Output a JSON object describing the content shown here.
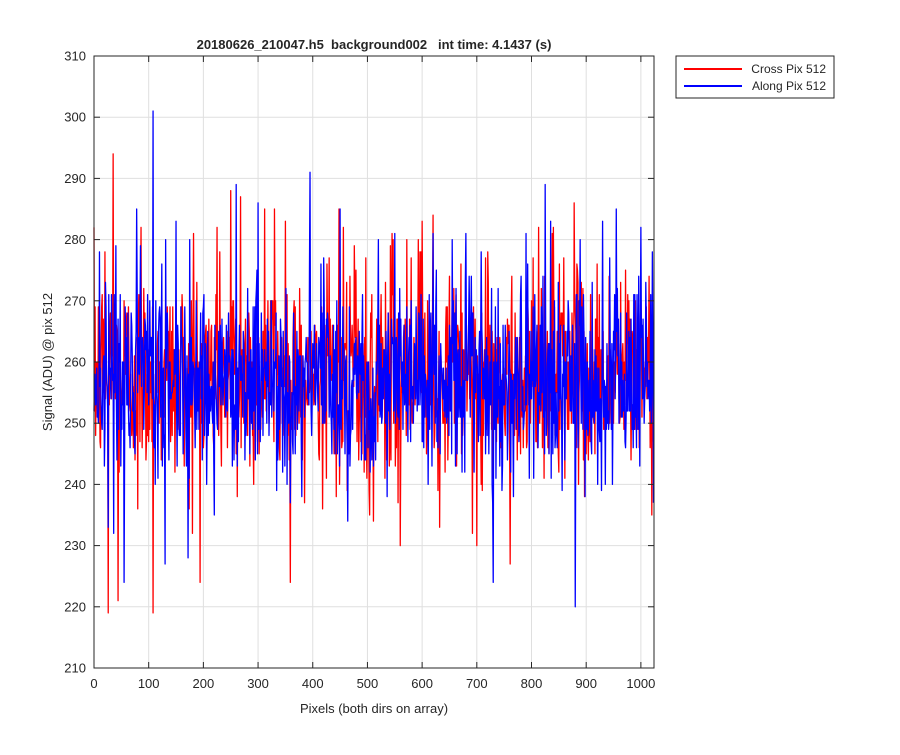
{
  "chart_data": {
    "type": "line",
    "title": "20180626_210047.h5  background002   int time: 4.1437 (s)",
    "xlabel": "Pixels (both dirs on array)",
    "ylabel": "Signal (ADU) @ pix 512",
    "xlim": [
      0,
      1024
    ],
    "ylim": [
      210,
      310
    ],
    "xticks": [
      0,
      100,
      200,
      300,
      400,
      500,
      600,
      700,
      800,
      900,
      1000
    ],
    "yticks": [
      210,
      220,
      230,
      240,
      250,
      260,
      270,
      280,
      290,
      300,
      310
    ],
    "grid": true,
    "legend_position": "outside top-right",
    "series": [
      {
        "name": "Cross Pix 512",
        "color": "#ff0000",
        "noise": {
          "n": 1024,
          "mean": 258,
          "sd": 8.5,
          "clip": [
            223,
            286
          ]
        },
        "values": [
          [
            2,
            269
          ],
          [
            20,
            278
          ],
          [
            26,
            219
          ],
          [
            35,
            294
          ],
          [
            44,
            221
          ],
          [
            80,
            236
          ],
          [
            86,
            282
          ],
          [
            108,
            219
          ],
          [
            180,
            232
          ],
          [
            182,
            281
          ],
          [
            200,
            246
          ],
          [
            225,
            282
          ],
          [
            250,
            288
          ],
          [
            262,
            238
          ],
          [
            268,
            287
          ],
          [
            312,
            285
          ],
          [
            330,
            285
          ],
          [
            350,
            283
          ],
          [
            430,
            277
          ],
          [
            448,
            285
          ],
          [
            520,
            270
          ],
          [
            545,
            281
          ],
          [
            560,
            230
          ],
          [
            600,
            283
          ],
          [
            620,
            284
          ],
          [
            700,
            230
          ],
          [
            720,
            278
          ],
          [
            800,
            270
          ],
          [
            840,
            282
          ],
          [
            900,
            245
          ],
          [
            1000,
            270
          ],
          [
            1022,
            255
          ]
        ]
      },
      {
        "name": "Along Pix 512",
        "color": "#0000ff",
        "noise": {
          "n": 1024,
          "mean": 257,
          "sd": 8,
          "clip": [
            225,
            286
          ]
        },
        "values": [
          [
            10,
            278
          ],
          [
            40,
            279
          ],
          [
            55,
            224
          ],
          [
            85,
            279
          ],
          [
            108,
            301
          ],
          [
            130,
            227
          ],
          [
            150,
            283
          ],
          [
            175,
            280
          ],
          [
            260,
            289
          ],
          [
            300,
            286
          ],
          [
            395,
            291
          ],
          [
            450,
            285
          ],
          [
            520,
            280
          ],
          [
            550,
            281
          ],
          [
            620,
            281
          ],
          [
            655,
            280
          ],
          [
            680,
            281
          ],
          [
            730,
            224
          ],
          [
            790,
            281
          ],
          [
            825,
            289
          ],
          [
            835,
            283
          ],
          [
            880,
            220
          ],
          [
            930,
            283
          ],
          [
            955,
            285
          ],
          [
            1000,
            282
          ],
          [
            1024,
            237
          ]
        ]
      }
    ]
  }
}
